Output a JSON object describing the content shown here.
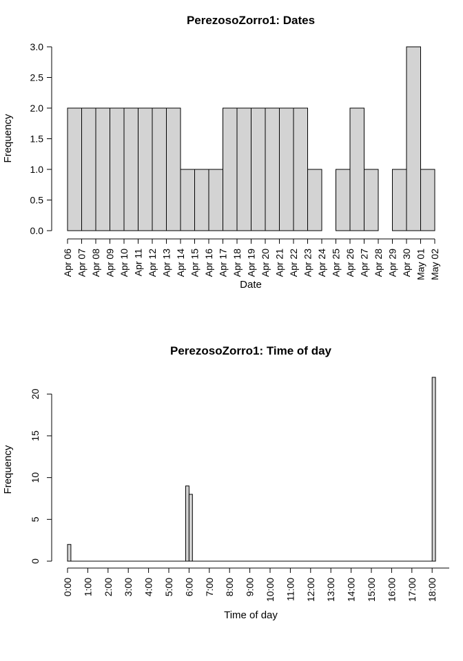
{
  "chart_data": [
    {
      "type": "bar",
      "title": "PerezosoZorro1: Dates",
      "xlabel": "Date",
      "ylabel": "Frequency",
      "ylim": [
        0,
        3
      ],
      "y_ticks": [
        "0.0",
        "0.5",
        "1.0",
        "1.5",
        "2.0",
        "2.5",
        "3.0"
      ],
      "x_tick_labels": [
        "Apr 06",
        "Apr 07",
        "Apr 08",
        "Apr 09",
        "Apr 10",
        "Apr 11",
        "Apr 12",
        "Apr 13",
        "Apr 14",
        "Apr 15",
        "Apr 16",
        "Apr 17",
        "Apr 18",
        "Apr 19",
        "Apr 20",
        "Apr 21",
        "Apr 22",
        "Apr 23",
        "Apr 24",
        "Apr 25",
        "Apr 26",
        "Apr 27",
        "Apr 28",
        "Apr 29",
        "Apr 30",
        "May 01",
        "May 02"
      ],
      "categories": [
        "Apr 06",
        "Apr 07",
        "Apr 08",
        "Apr 09",
        "Apr 10",
        "Apr 11",
        "Apr 12",
        "Apr 13",
        "Apr 14",
        "Apr 15",
        "Apr 16",
        "Apr 17",
        "Apr 18",
        "Apr 19",
        "Apr 20",
        "Apr 21",
        "Apr 22",
        "Apr 23",
        "Apr 24",
        "Apr 25",
        "Apr 26",
        "Apr 27",
        "Apr 28",
        "Apr 29",
        "Apr 30",
        "May 01"
      ],
      "values": [
        2,
        2,
        2,
        2,
        2,
        2,
        2,
        2,
        1,
        1,
        1,
        2,
        2,
        2,
        2,
        2,
        2,
        1,
        0,
        1,
        2,
        1,
        0,
        1,
        3,
        1
      ],
      "bar_color": "#d3d3d3",
      "grid": false
    },
    {
      "type": "bar",
      "title": "PerezosoZorro1: Time of day",
      "xlabel": "Time of day",
      "ylabel": "Frequency",
      "ylim": [
        0,
        22
      ],
      "y_ticks": [
        "0",
        "5",
        "10",
        "15",
        "20"
      ],
      "x_tick_labels": [
        "0:00",
        "1:00",
        "2:00",
        "3:00",
        "4:00",
        "5:00",
        "6:00",
        "7:00",
        "8:00",
        "9:00",
        "10:00",
        "11:00",
        "12:00",
        "13:00",
        "14:00",
        "15:00",
        "16:00",
        "17:00",
        "18:00"
      ],
      "bin_width_minutes": 10,
      "x_range_hours": [
        0,
        18.1667
      ],
      "bins": [
        {
          "start": "0:00",
          "value": 2
        },
        {
          "start": "5:50",
          "value": 9
        },
        {
          "start": "6:00",
          "value": 8
        },
        {
          "start": "18:00",
          "value": 22
        }
      ],
      "bar_color": "#d3d3d3",
      "grid": false
    }
  ]
}
